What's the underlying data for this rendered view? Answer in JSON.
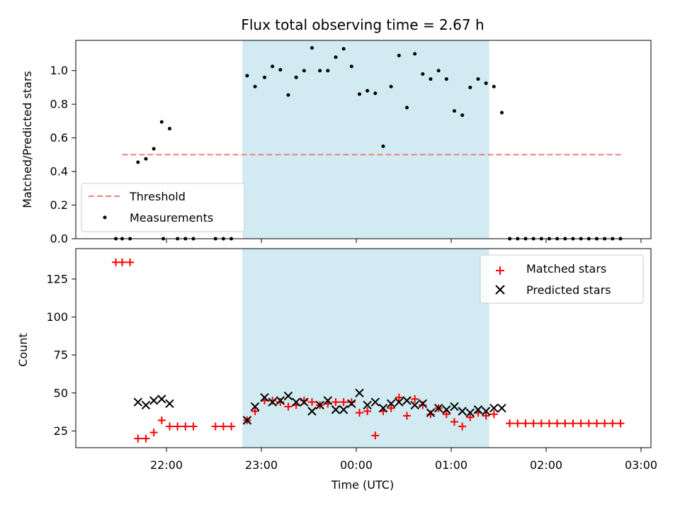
{
  "chart_data": [
    {
      "type": "scatter",
      "title": "Flux total observing time = 2.67 h",
      "ylabel": "Matched/Predicted stars",
      "ylim": [
        0,
        1.18
      ],
      "yticks": [
        0.0,
        0.2,
        0.4,
        0.6,
        0.8,
        1.0
      ],
      "ytick_labels": [
        "0.0",
        "0.2",
        "0.4",
        "0.6",
        "0.8",
        "1.0"
      ],
      "shaded_span": [
        "22:48",
        "01:24"
      ],
      "threshold": {
        "label": "Threshold",
        "value": 0.5,
        "x_start": "21:32",
        "x_end": "02:48"
      },
      "legend": {
        "position": "lower-left",
        "entries": [
          "Threshold",
          "Measurements"
        ]
      },
      "series": [
        {
          "name": "Measurements",
          "points": [
            [
              "21:28",
              0
            ],
            [
              "21:32",
              0
            ],
            [
              "21:37",
              0
            ],
            [
              "21:42",
              0.455
            ],
            [
              "21:47",
              0.475
            ],
            [
              "21:52",
              0.535
            ],
            [
              "21:57",
              0.695
            ],
            [
              "22:02",
              0.655
            ],
            [
              "21:58",
              0
            ],
            [
              "22:07",
              0
            ],
            [
              "22:12",
              0
            ],
            [
              "22:17",
              0
            ],
            [
              "22:31",
              0
            ],
            [
              "22:36",
              0
            ],
            [
              "22:41",
              0
            ],
            [
              "22:51",
              0.97
            ],
            [
              "22:56",
              0.905
            ],
            [
              "23:02",
              0.96
            ],
            [
              "23:07",
              1.025
            ],
            [
              "23:12",
              1.005
            ],
            [
              "23:17",
              0.855
            ],
            [
              "23:22",
              0.96
            ],
            [
              "23:27",
              1.0
            ],
            [
              "23:32",
              1.135
            ],
            [
              "23:37",
              1.0
            ],
            [
              "23:42",
              1.0
            ],
            [
              "23:47",
              1.08
            ],
            [
              "23:52",
              1.13
            ],
            [
              "23:57",
              1.025
            ],
            [
              "00:02",
              0.86
            ],
            [
              "00:07",
              0.88
            ],
            [
              "00:12",
              0.865
            ],
            [
              "00:17",
              0.55
            ],
            [
              "00:22",
              0.905
            ],
            [
              "00:27",
              1.09
            ],
            [
              "00:32",
              0.78
            ],
            [
              "00:37",
              1.1
            ],
            [
              "00:42",
              0.98
            ],
            [
              "00:47",
              0.95
            ],
            [
              "00:52",
              1.0
            ],
            [
              "00:57",
              0.95
            ],
            [
              "01:02",
              0.76
            ],
            [
              "01:07",
              0.735
            ],
            [
              "01:12",
              0.9
            ],
            [
              "01:17",
              0.95
            ],
            [
              "01:22",
              0.925
            ],
            [
              "01:27",
              0.905
            ],
            [
              "01:32",
              0.75
            ],
            [
              "01:37",
              0
            ],
            [
              "01:42",
              0
            ],
            [
              "01:47",
              0
            ],
            [
              "01:52",
              0
            ],
            [
              "01:57",
              0
            ],
            [
              "02:02",
              0
            ],
            [
              "02:07",
              0
            ],
            [
              "02:12",
              0
            ],
            [
              "02:17",
              0
            ],
            [
              "02:22",
              0
            ],
            [
              "02:27",
              0
            ],
            [
              "02:32",
              0
            ],
            [
              "02:37",
              0
            ],
            [
              "02:42",
              0
            ],
            [
              "02:47",
              0
            ]
          ]
        }
      ]
    },
    {
      "type": "scatter",
      "xlabel": "Time (UTC)",
      "ylabel": "Count",
      "ylim": [
        14,
        145
      ],
      "yticks": [
        25,
        50,
        75,
        100,
        125
      ],
      "ytick_labels": [
        "25",
        "50",
        "75",
        "100",
        "125"
      ],
      "xticks": [
        "22:00",
        "23:00",
        "00:00",
        "01:00",
        "02:00",
        "03:00"
      ],
      "shaded_span": [
        "22:48",
        "01:24"
      ],
      "legend": {
        "position": "top-right",
        "entries": [
          "Matched stars",
          "Predicted stars"
        ]
      },
      "series": [
        {
          "name": "Matched stars",
          "points": [
            [
              "21:28",
              136
            ],
            [
              "21:32",
              136
            ],
            [
              "21:37",
              136
            ],
            [
              "21:42",
              20
            ],
            [
              "21:47",
              20
            ],
            [
              "21:52",
              24
            ],
            [
              "21:57",
              32
            ],
            [
              "22:02",
              28
            ],
            [
              "22:07",
              28
            ],
            [
              "22:12",
              28
            ],
            [
              "22:17",
              28
            ],
            [
              "22:31",
              28
            ],
            [
              "22:36",
              28
            ],
            [
              "22:41",
              28
            ],
            [
              "22:51",
              32
            ],
            [
              "22:56",
              38
            ],
            [
              "23:02",
              45
            ],
            [
              "23:07",
              45
            ],
            [
              "23:12",
              44
            ],
            [
              "23:17",
              41
            ],
            [
              "23:22",
              42
            ],
            [
              "23:27",
              45
            ],
            [
              "23:32",
              44
            ],
            [
              "23:37",
              42
            ],
            [
              "23:42",
              43
            ],
            [
              "23:47",
              44
            ],
            [
              "23:52",
              44
            ],
            [
              "23:57",
              44
            ],
            [
              "00:02",
              37
            ],
            [
              "00:07",
              38
            ],
            [
              "00:12",
              22
            ],
            [
              "00:17",
              38
            ],
            [
              "00:22",
              40
            ],
            [
              "00:27",
              47
            ],
            [
              "00:32",
              35
            ],
            [
              "00:37",
              46
            ],
            [
              "00:42",
              42
            ],
            [
              "00:47",
              36
            ],
            [
              "00:52",
              40
            ],
            [
              "00:57",
              36
            ],
            [
              "01:02",
              31
            ],
            [
              "01:07",
              28
            ],
            [
              "01:12",
              34
            ],
            [
              "01:17",
              37
            ],
            [
              "01:22",
              35
            ],
            [
              "01:27",
              36
            ],
            [
              "01:37",
              30
            ],
            [
              "01:42",
              30
            ],
            [
              "01:47",
              30
            ],
            [
              "01:52",
              30
            ],
            [
              "01:57",
              30
            ],
            [
              "02:02",
              30
            ],
            [
              "02:07",
              30
            ],
            [
              "02:12",
              30
            ],
            [
              "02:17",
              30
            ],
            [
              "02:22",
              30
            ],
            [
              "02:27",
              30
            ],
            [
              "02:32",
              30
            ],
            [
              "02:37",
              30
            ],
            [
              "02:42",
              30
            ],
            [
              "02:47",
              30
            ]
          ]
        },
        {
          "name": "Predicted stars",
          "points": [
            [
              "21:42",
              44
            ],
            [
              "21:47",
              42
            ],
            [
              "21:52",
              45
            ],
            [
              "21:57",
              46
            ],
            [
              "22:02",
              43
            ],
            [
              "22:51",
              32
            ],
            [
              "22:56",
              41
            ],
            [
              "23:02",
              47
            ],
            [
              "23:07",
              44
            ],
            [
              "23:12",
              45
            ],
            [
              "23:17",
              48
            ],
            [
              "23:22",
              44
            ],
            [
              "23:27",
              44
            ],
            [
              "23:32",
              38
            ],
            [
              "23:37",
              42
            ],
            [
              "23:42",
              45
            ],
            [
              "23:47",
              39
            ],
            [
              "23:52",
              39
            ],
            [
              "23:57",
              43
            ],
            [
              "00:02",
              50
            ],
            [
              "00:07",
              42
            ],
            [
              "00:12",
              44
            ],
            [
              "00:17",
              40
            ],
            [
              "00:22",
              43
            ],
            [
              "00:27",
              44
            ],
            [
              "00:32",
              45
            ],
            [
              "00:37",
              42
            ],
            [
              "00:42",
              43
            ],
            [
              "00:47",
              37
            ],
            [
              "00:52",
              40
            ],
            [
              "00:57",
              39
            ],
            [
              "01:02",
              41
            ],
            [
              "01:07",
              38
            ],
            [
              "01:12",
              37
            ],
            [
              "01:17",
              39
            ],
            [
              "01:22",
              38
            ],
            [
              "01:27",
              40
            ],
            [
              "01:32",
              40
            ]
          ]
        }
      ]
    }
  ],
  "colors": {
    "span": "#add8e6",
    "threshold": "#f08080",
    "measurements": "#000000",
    "matched": "#ff0000",
    "predicted": "#000000"
  }
}
